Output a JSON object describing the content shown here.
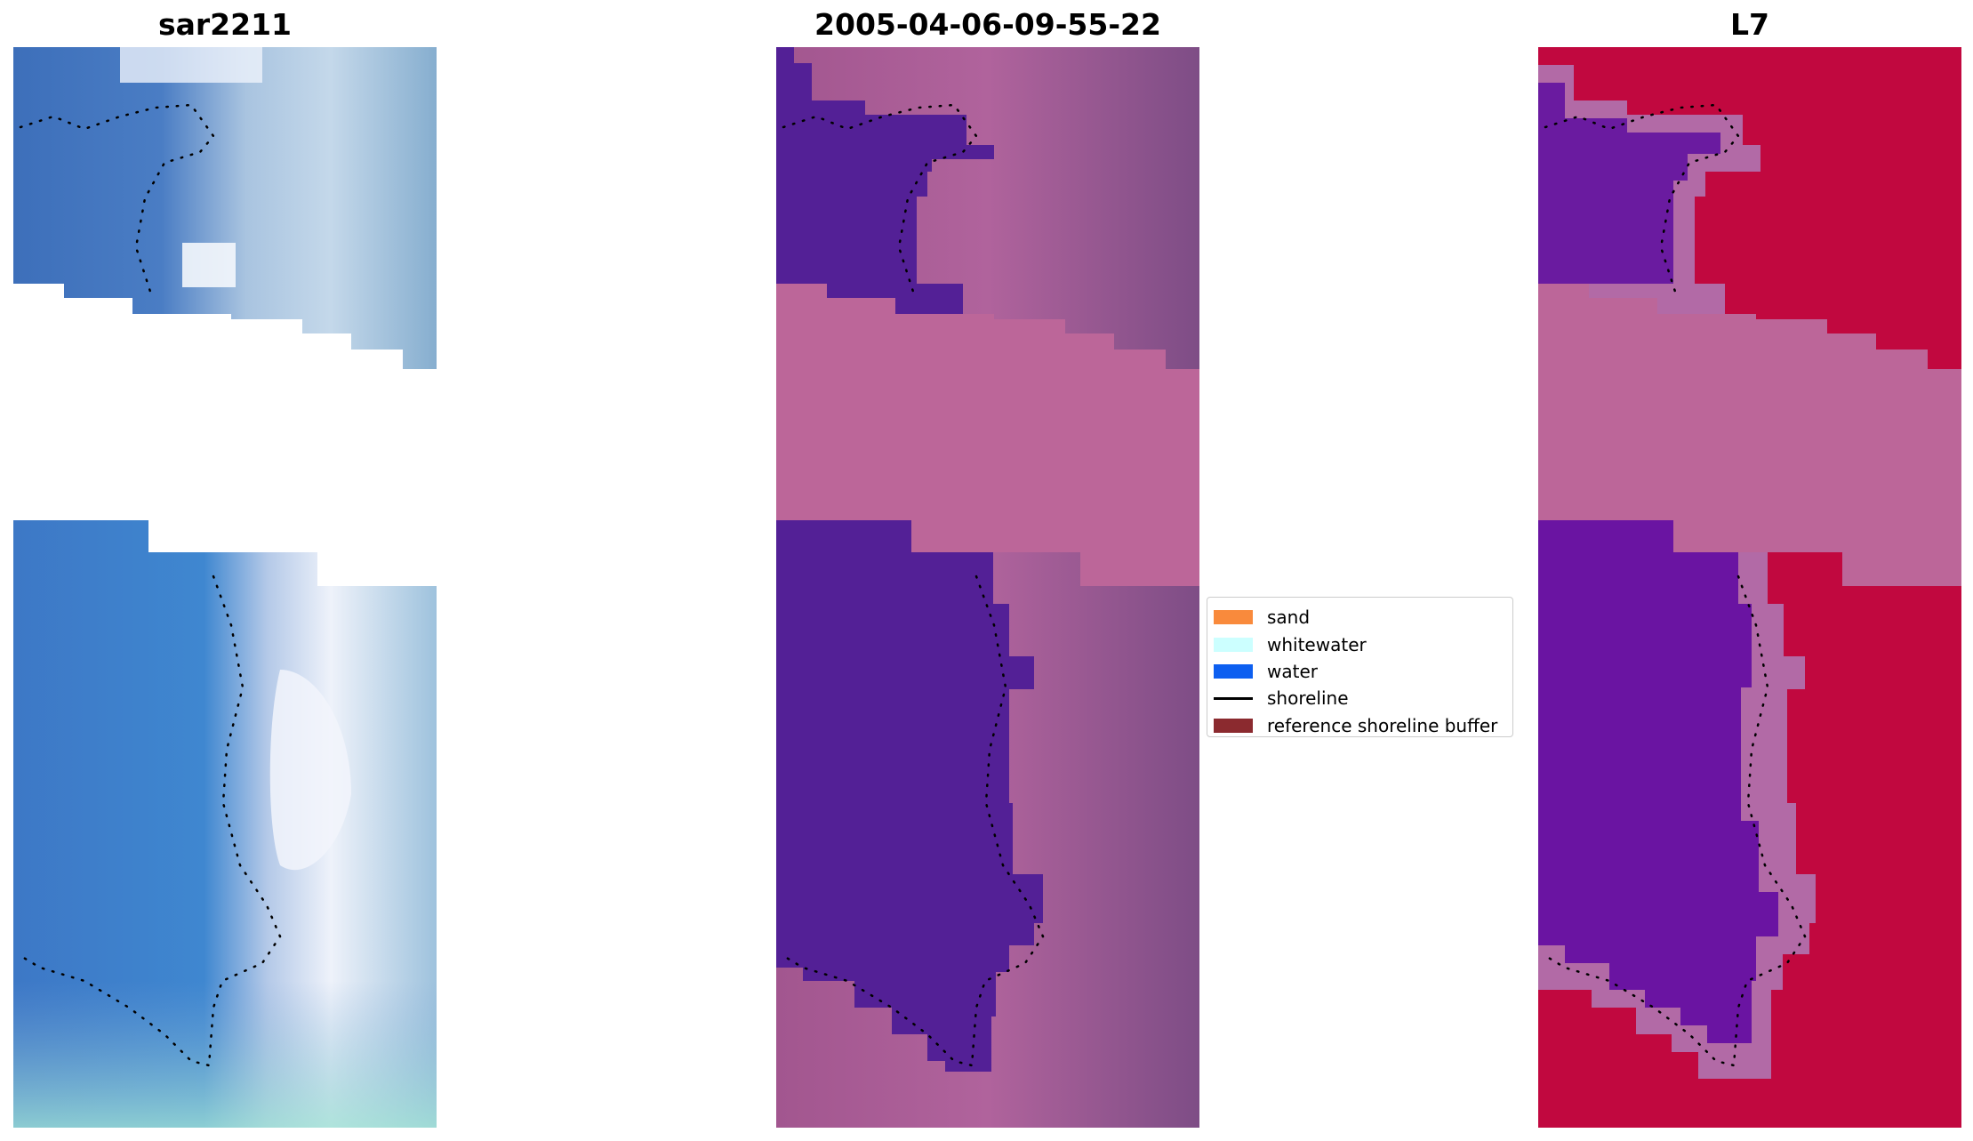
{
  "panels": [
    {
      "title": "sar2211"
    },
    {
      "title": "2005-04-06-09-55-22"
    },
    {
      "title": "L7"
    }
  ],
  "legend": {
    "items": [
      {
        "label": "sand",
        "color": "#f98a3c",
        "kind": "patch"
      },
      {
        "label": "whitewater",
        "color": "#ccffff",
        "kind": "patch"
      },
      {
        "label": "water",
        "color": "#0d5ff0",
        "kind": "patch"
      },
      {
        "label": "shoreline",
        "color": "#000000",
        "kind": "line"
      },
      {
        "label": "reference shoreline buffer",
        "color": "#8b2a2f",
        "kind": "patch"
      }
    ]
  }
}
